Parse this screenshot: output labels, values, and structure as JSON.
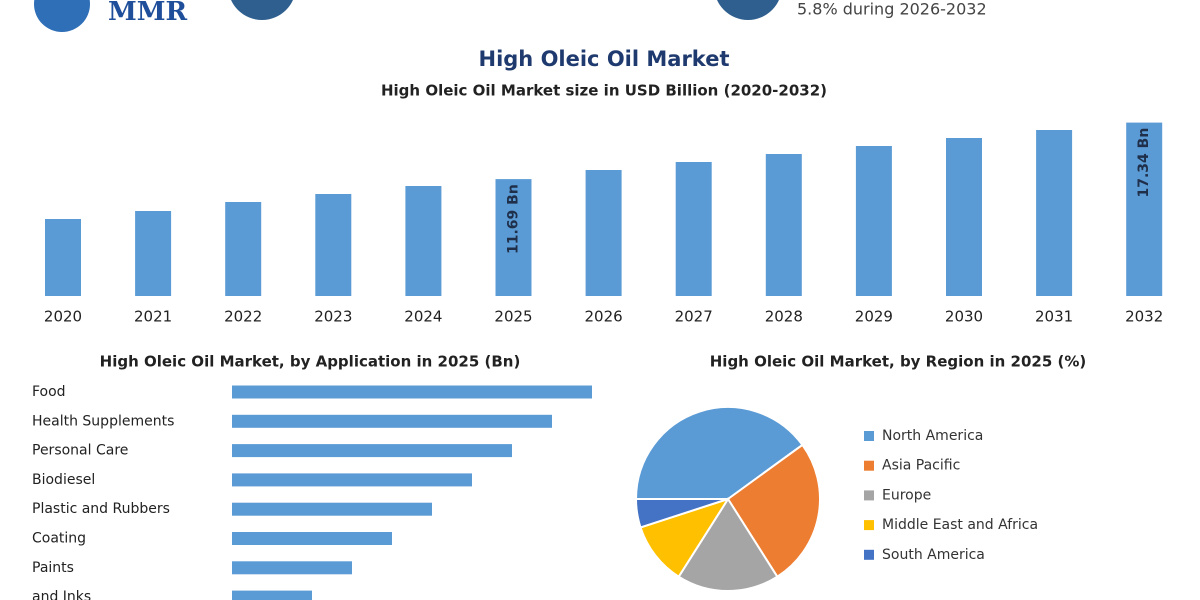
{
  "header": {
    "logo": "MMR",
    "note": "5.8% during 2026-2032"
  },
  "title": "High Oleic Oil Market",
  "chart_data": [
    {
      "type": "bar",
      "title": "High Oleic Oil Market size in USD Billion (2020-2032)",
      "categories": [
        "2020",
        "2021",
        "2022",
        "2023",
        "2024",
        "2025",
        "2026",
        "2027",
        "2028",
        "2029",
        "2030",
        "2031",
        "2032"
      ],
      "values": [
        7.7,
        8.5,
        9.4,
        10.2,
        11.0,
        11.69,
        12.6,
        13.4,
        14.2,
        15.0,
        15.8,
        16.6,
        17.34
      ],
      "value_labels": [
        null,
        null,
        null,
        null,
        null,
        "11.69 Bn",
        null,
        null,
        null,
        null,
        null,
        null,
        "17.34 Bn"
      ],
      "color": "#5b9bd5",
      "ylim": [
        0,
        18
      ]
    },
    {
      "type": "hbar",
      "title": "High Oleic Oil Market, by Application in 2025 (Bn)",
      "categories": [
        "Food",
        "Health Supplements",
        "Personal Care",
        "Biodiesel",
        "Plastic and Rubbers",
        "Coating",
        "Paints",
        "and Inks"
      ],
      "values": [
        4.5,
        4.0,
        3.5,
        3.0,
        2.5,
        2.0,
        1.5,
        1.0
      ],
      "color": "#5b9bd5",
      "xlim": [
        0,
        5
      ]
    },
    {
      "type": "pie",
      "title": "High Oleic Oil Market, by Region in 2025 (%)",
      "categories": [
        "North America",
        "Asia Pacific",
        "Europe",
        "Middle East and Africa",
        "South America"
      ],
      "values": [
        40,
        26,
        18,
        11,
        5
      ],
      "colors": [
        "#5b9bd5",
        "#ed7d31",
        "#a5a5a5",
        "#ffc000",
        "#4472c4"
      ]
    }
  ]
}
